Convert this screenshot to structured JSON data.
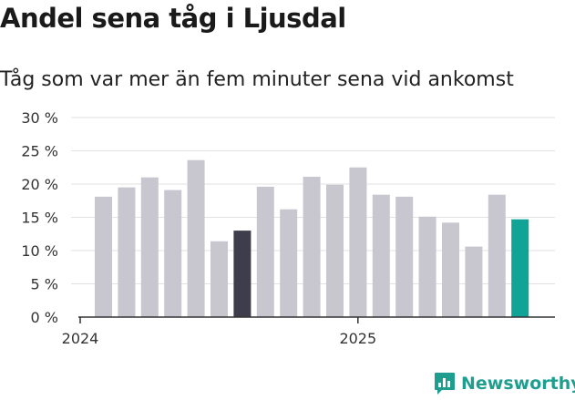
{
  "header": {
    "title": "Andel sena tåg i Ljusdal",
    "subtitle": "Tåg som var mer än fem minuter sena vid ankomst"
  },
  "brand": {
    "name": "Newsworthy",
    "logo_icon": "chart-bubble-icon",
    "color": "#1f9e8f"
  },
  "colors": {
    "default_bar": "#c8c7d0",
    "highlight_dark": "#3e3d4b",
    "highlight_latest": "#10a396"
  },
  "chart_data": {
    "type": "bar",
    "title": "Andel sena tåg i Ljusdal",
    "subtitle": "Tåg som var mer än fem minuter sena vid ankomst",
    "xlabel": "",
    "ylabel": "",
    "ylim": [
      0,
      30
    ],
    "y_ticks": [
      "0 %",
      "5 %",
      "10 %",
      "15 %",
      "20 %",
      "25 %",
      "30 %"
    ],
    "x_tick_labels": [
      {
        "label": "2024",
        "index": 0
      },
      {
        "label": "2025",
        "index": 12
      }
    ],
    "grid": true,
    "values": [
      18.1,
      19.5,
      21.0,
      19.1,
      23.6,
      11.4,
      13.0,
      19.6,
      16.2,
      21.1,
      19.9,
      22.5,
      18.4,
      18.1,
      15.1,
      14.2,
      10.6,
      18.4,
      14.7
    ],
    "highlight": {
      "6": "highlight_dark",
      "18": "highlight_latest"
    }
  }
}
